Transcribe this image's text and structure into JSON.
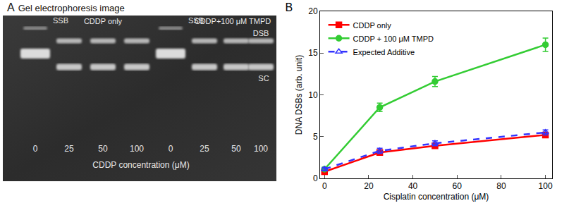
{
  "gel": {
    "panel": "A",
    "title": "Gel electrophoresis image",
    "x_label": "CDDP concentration (μM)",
    "band_labels": [
      "DSB",
      "SC"
    ],
    "groups": [
      {
        "label": "CDDP only",
        "lanes": [
          {
            "label": 0,
            "bands": [
              "SSB",
              "SC"
            ],
            "band_text": "SSB"
          },
          {
            "label": 25,
            "bands": [
              "DSB",
              "SC"
            ]
          },
          {
            "label": 50,
            "bands": [
              "DSB",
              "SC"
            ]
          },
          {
            "label": 100,
            "bands": [
              "DSB",
              "SC"
            ]
          }
        ]
      },
      {
        "label": "CDDP+100 μM TMPD",
        "lanes": [
          {
            "label": 0,
            "bands": [
              "SSB",
              "SC"
            ],
            "band_text": "SSB"
          },
          {
            "label": 25,
            "bands": [
              "DSB",
              "SC"
            ]
          },
          {
            "label": 50,
            "bands": [
              "DSB",
              "SC"
            ]
          },
          {
            "label": 100,
            "bands": [
              "DSB",
              "SC"
            ]
          }
        ]
      }
    ]
  },
  "chart_data": {
    "type": "line",
    "title": "B",
    "x_label": "Cisplatin concentration (μM)",
    "y_label": "DNA DSBs (arb. unit)",
    "x": [
      0,
      25,
      50,
      100
    ],
    "xlim": [
      -2,
      103
    ],
    "xticks": [
      0,
      20,
      40,
      60,
      80,
      100
    ],
    "ylim": [
      0,
      20
    ],
    "yticks": [
      0,
      5,
      10,
      15,
      20
    ],
    "grid": false,
    "legend": "upper left",
    "series": [
      {
        "name": "CDDP only",
        "color": "#ff0000",
        "marker": "square",
        "line_style": "solid",
        "values": [
          0.8,
          3.1,
          3.9,
          5.2
        ],
        "errors": [
          0.2,
          0.3,
          0.3,
          0.3
        ]
      },
      {
        "name": "CDDP + 100 μM TMPD",
        "color": "#33cc33",
        "marker": "circle",
        "line_style": "solid",
        "values": [
          1.1,
          8.5,
          11.6,
          16.0
        ],
        "errors": [
          0.2,
          0.5,
          0.6,
          0.8
        ]
      },
      {
        "name": "Expected Additive",
        "color": "#3333ff",
        "marker": "triangle-up-open",
        "line_style": "dash",
        "values": [
          1.1,
          3.3,
          4.2,
          5.5
        ],
        "errors": [
          0.2,
          0.3,
          0.3,
          0.3
        ]
      }
    ]
  }
}
